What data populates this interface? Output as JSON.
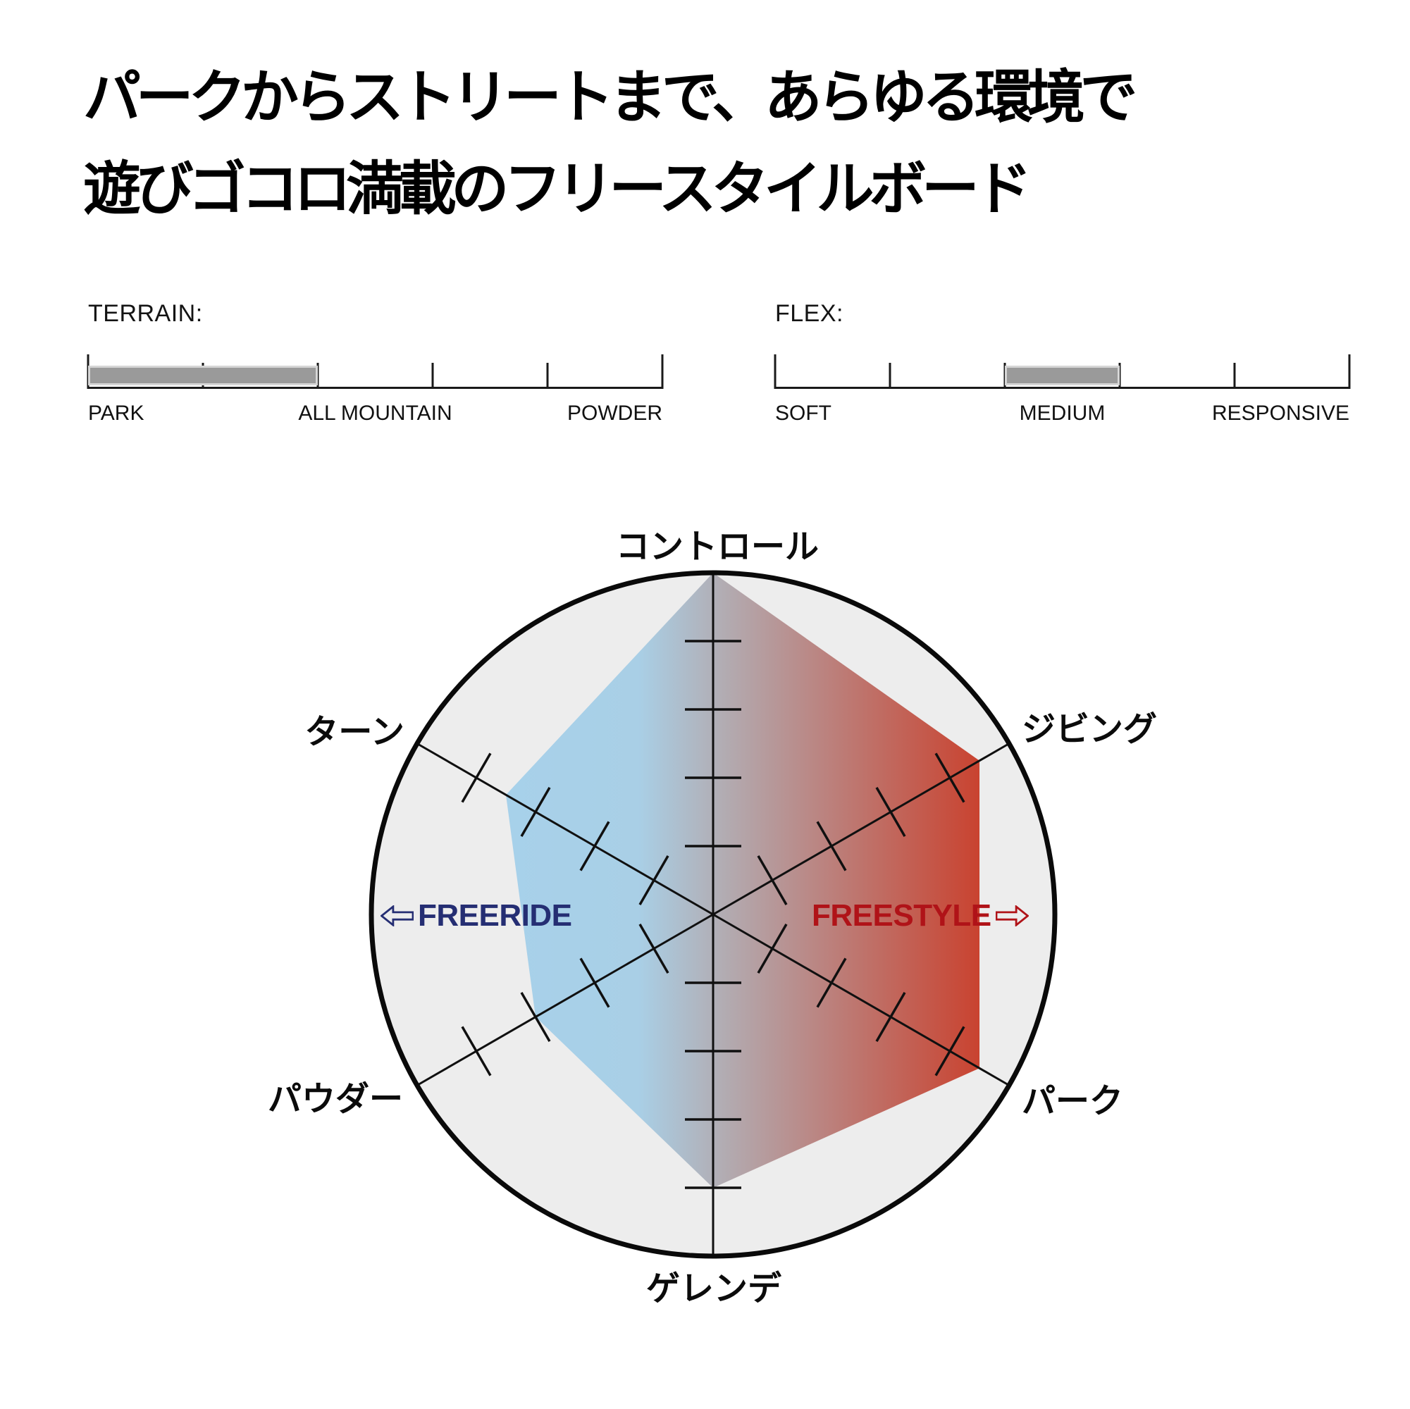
{
  "headline": {
    "line1": "パークからストリートまで、あらゆる環境で",
    "line2": "遊びゴコロ満載のフリースタイルボード"
  },
  "chart_data": [
    {
      "type": "radar",
      "title": "",
      "max": 5,
      "ticks_per_axis": 4,
      "axes": [
        {
          "label": "コントロール",
          "value": 5
        },
        {
          "label": "ジビング",
          "value": 4.5
        },
        {
          "label": "パーク",
          "value": 4.5
        },
        {
          "label": "ゲレンデ",
          "value": 4
        },
        {
          "label": "パウダー",
          "value": 3
        },
        {
          "label": "ターン",
          "value": 3.5
        }
      ],
      "side_labels": {
        "left": {
          "text": "FREERIDE",
          "color": "#252e73",
          "arrow": "left-outline-arrow"
        },
        "right": {
          "text": "FREESTYLE",
          "color": "#b01318",
          "arrow": "right-outline-arrow"
        }
      },
      "gradient": [
        {
          "offset": "0%",
          "color": "#a7d1ea"
        },
        {
          "offset": "28%",
          "color": "#a9cfe6"
        },
        {
          "offset": "46%",
          "color": "#b2acb2"
        },
        {
          "offset": "100%",
          "color": "#c94330"
        }
      ],
      "circle_fill": "#ededed",
      "circle_stroke": "#0a0a0a",
      "axis_color": "#101010"
    },
    {
      "type": "scale",
      "label": "TERRAIN:",
      "segments": 5,
      "filled": [
        0,
        2
      ],
      "fill_color": "#9a9a9a",
      "end_labels": [
        "PARK",
        "ALL MOUNTAIN",
        "POWDER"
      ]
    },
    {
      "type": "scale",
      "label": "FLEX:",
      "segments": 5,
      "filled": [
        2,
        3
      ],
      "fill_color": "#9a9a9a",
      "end_labels": [
        "SOFT",
        "MEDIUM",
        "RESPONSIVE"
      ]
    }
  ]
}
